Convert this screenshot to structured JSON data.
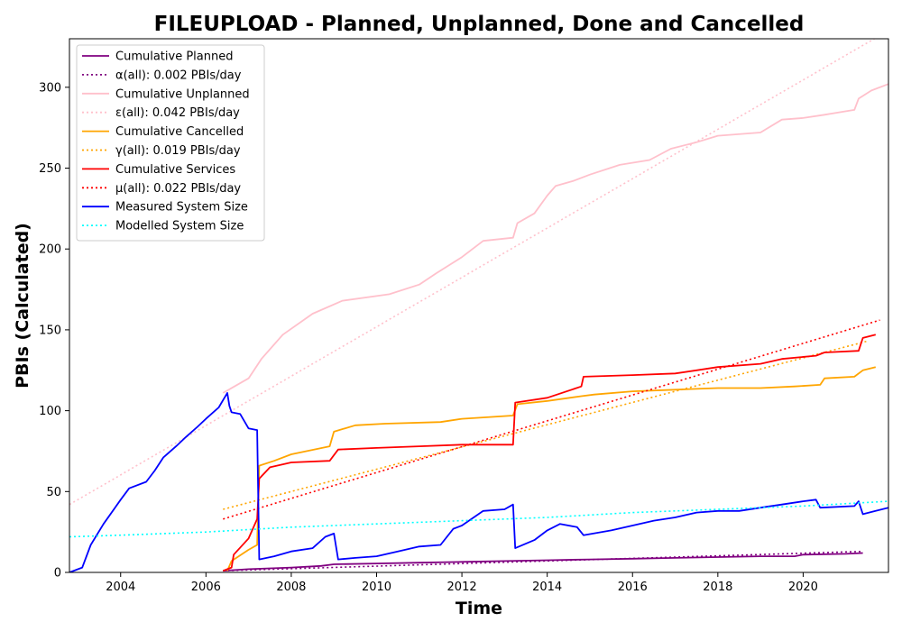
{
  "chart_data": {
    "type": "line",
    "title": "FILEUPLOAD - Planned, Unplanned, Done  and Cancelled",
    "xlabel": "Time",
    "ylabel": "PBIs (Calculated)",
    "xlim": [
      2002.8,
      2022.0
    ],
    "ylim": [
      0,
      330
    ],
    "x_ticks": [
      2004,
      2006,
      2008,
      2010,
      2012,
      2014,
      2016,
      2018,
      2020
    ],
    "x_tick_labels": [
      "2004",
      "2006",
      "2008",
      "2010",
      "2012",
      "2014",
      "2016",
      "2018",
      "2020"
    ],
    "y_ticks": [
      0,
      50,
      100,
      150,
      200,
      250,
      300
    ],
    "y_tick_labels": [
      "0",
      "50",
      "100",
      "150",
      "200",
      "250",
      "300"
    ],
    "grid": false,
    "legend_position": "top-left",
    "series": [
      {
        "name": "Cumulative Planned",
        "color": "#800080",
        "style": "solid",
        "x": [
          2006.4,
          2007,
          2008,
          2008.7,
          2009,
          2010,
          2011,
          2012,
          2013,
          2014,
          2015,
          2016,
          2017,
          2018,
          2019,
          2019.8,
          2020,
          2021,
          2021.4
        ],
        "y": [
          1,
          2,
          3,
          4,
          5,
          5.5,
          6,
          6.5,
          7,
          7.5,
          8,
          8.5,
          9,
          9.5,
          10,
          10,
          11,
          11.5,
          12
        ]
      },
      {
        "name": "α(all): 0.002 PBIs/day",
        "color": "#800080",
        "style": "dotted",
        "x": [
          2006.4,
          2021.4
        ],
        "y": [
          1,
          13
        ]
      },
      {
        "name": "Cumulative Unplanned",
        "color": "#ffc0cb",
        "style": "solid",
        "x": [
          2006.4,
          2007,
          2007.3,
          2007.8,
          2008.5,
          2009.2,
          2010.3,
          2011,
          2011.4,
          2012,
          2012.5,
          2013.2,
          2013.3,
          2013.7,
          2014,
          2014.2,
          2014.6,
          2015,
          2015.7,
          2016.4,
          2016.9,
          2017.5,
          2018,
          2019,
          2019.5,
          2020,
          2020.5,
          2021.2,
          2021.3,
          2021.6,
          2022
        ],
        "y": [
          111,
          120,
          132,
          147,
          160,
          168,
          172,
          178,
          185,
          195,
          205,
          207,
          216,
          222,
          233,
          239,
          242,
          246,
          252,
          255,
          262,
          266,
          270,
          272,
          280,
          281,
          283,
          286,
          293,
          298,
          302
        ]
      },
      {
        "name": "ε(all): 0.042 PBIs/day",
        "color": "#ffc0cb",
        "style": "dotted",
        "x": [
          2002.8,
          2021.8
        ],
        "y": [
          42,
          332
        ]
      },
      {
        "name": "Cumulative Cancelled",
        "color": "#ffa500",
        "style": "solid",
        "x": [
          2006.5,
          2006.6,
          2007.0,
          2007.2,
          2007.25,
          2007.6,
          2008,
          2008.9,
          2009.0,
          2009.5,
          2010.2,
          2011.5,
          2012,
          2013.2,
          2013.3,
          2014,
          2014.8,
          2015.1,
          2016,
          2017,
          2018,
          2019,
          2019.8,
          2020.4,
          2020.5,
          2021.2,
          2021.4,
          2021.7
        ],
        "y": [
          1,
          7,
          14,
          17,
          66,
          69,
          73,
          78,
          87,
          91,
          92,
          93,
          95,
          97,
          104,
          106,
          109,
          110,
          112,
          113,
          114,
          114,
          115,
          116,
          120,
          121,
          125,
          127
        ]
      },
      {
        "name": "γ(all): 0.019 PBIs/day",
        "color": "#ffa500",
        "style": "dotted",
        "x": [
          2006.4,
          2021.5
        ],
        "y": [
          39,
          143
        ]
      },
      {
        "name": "Cumulative Services",
        "color": "#ff0000",
        "style": "solid",
        "x": [
          2006.4,
          2006.6,
          2006.65,
          2007.0,
          2007.2,
          2007.25,
          2007.5,
          2008,
          2008.9,
          2009.1,
          2010,
          2011,
          2012,
          2013.2,
          2013.25,
          2014,
          2014.8,
          2014.85,
          2016,
          2017,
          2017.5,
          2018,
          2019,
          2019.5,
          2020.3,
          2020.5,
          2021.3,
          2021.4,
          2021.7
        ],
        "y": [
          1,
          3,
          11,
          21,
          33,
          58,
          65,
          68,
          69,
          76,
          77,
          78,
          79,
          79,
          105,
          108,
          115,
          121,
          122,
          123,
          125,
          127,
          129,
          132,
          134,
          136,
          137,
          145,
          147
        ]
      },
      {
        "name": "μ(all): 0.022 PBIs/day",
        "color": "#ff0000",
        "style": "dotted",
        "x": [
          2006.4,
          2021.8
        ],
        "y": [
          33,
          156
        ]
      },
      {
        "name": "Measured System Size",
        "color": "#0000ff",
        "style": "solid",
        "x": [
          2002.8,
          2003.1,
          2003.3,
          2003.6,
          2004.0,
          2004.2,
          2004.6,
          2004.8,
          2005.0,
          2005.3,
          2005.5,
          2005.8,
          2006.0,
          2006.3,
          2006.5,
          2006.55,
          2006.6,
          2006.8,
          2007.0,
          2007.2,
          2007.25,
          2007.6,
          2008,
          2008.5,
          2008.8,
          2009.0,
          2009.1,
          2009.5,
          2010,
          2010.5,
          2011,
          2011.5,
          2011.8,
          2012,
          2012.5,
          2013.0,
          2013.2,
          2013.25,
          2013.7,
          2014,
          2014.3,
          2014.7,
          2014.85,
          2015.5,
          2016,
          2016.5,
          2017,
          2017.5,
          2018,
          2018.5,
          2019,
          2019.5,
          2020,
          2020.3,
          2020.4,
          2021.2,
          2021.3,
          2021.4,
          2021.7,
          2022.0
        ],
        "y": [
          0,
          3,
          17,
          30,
          45,
          52,
          56,
          63,
          71,
          78,
          83,
          90,
          95,
          102,
          111,
          103,
          99,
          98,
          89,
          88,
          8,
          10,
          13,
          15,
          22,
          24,
          8,
          9,
          10,
          13,
          16,
          17,
          27,
          29,
          38,
          39,
          42,
          15,
          20,
          26,
          30,
          28,
          23,
          26,
          29,
          32,
          34,
          37,
          38,
          38,
          40,
          42,
          44,
          45,
          40,
          41,
          44,
          36,
          38,
          40
        ]
      },
      {
        "name": "Modelled System Size",
        "color": "#00ffff",
        "style": "dotted",
        "x": [
          2002.8,
          2004,
          2006,
          2008,
          2010,
          2012,
          2014,
          2016,
          2018,
          2020,
          2022
        ],
        "y": [
          22,
          23,
          25,
          28,
          30,
          32,
          34,
          37,
          39,
          41,
          44
        ]
      }
    ]
  }
}
